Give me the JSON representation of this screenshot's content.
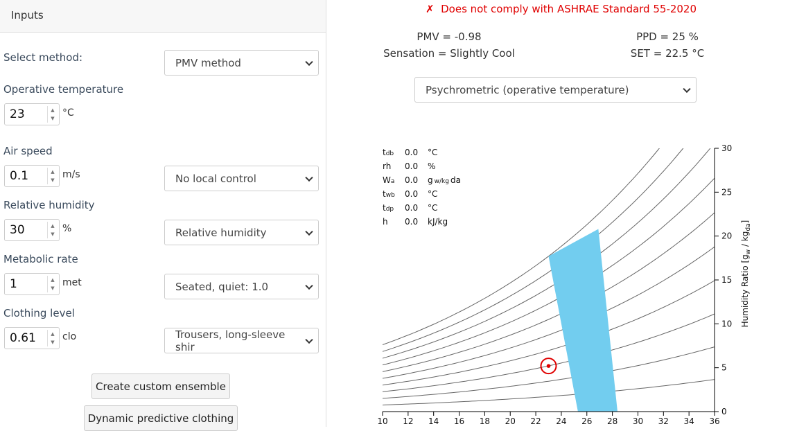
{
  "inputs_panel": {
    "title": "Inputs",
    "method": {
      "label": "Select method:",
      "value": "PMV method"
    },
    "fields": [
      {
        "label": "Operative temperature",
        "value": "23",
        "unit": "°C"
      },
      {
        "label": "Air speed",
        "value": "0.1",
        "unit": "m/s",
        "select": "No local control"
      },
      {
        "label": "Relative humidity",
        "value": "30",
        "unit": "%",
        "select": "Relative humidity"
      },
      {
        "label": "Metabolic rate",
        "value": "1",
        "unit": "met",
        "select": "Seated, quiet: 1.0"
      },
      {
        "label": "Clothing level",
        "value": "0.61",
        "unit": "clo",
        "select": "Trousers, long-sleeve shir"
      }
    ],
    "buttons": [
      "Create custom ensemble",
      "Dynamic predictive clothing"
    ]
  },
  "status": {
    "icon": "✗",
    "text": "Does not comply with ASHRAE Standard 55-2020"
  },
  "results": {
    "pmv": "PMV = -0.98",
    "sensation": "Sensation = Slightly Cool",
    "ppd": "PPD = 25 %",
    "set": "SET = 22.5 °C"
  },
  "chart_select": "Psychrometric (operative temperature)",
  "chart_data": {
    "type": "psychrometric",
    "y_label": [
      "Humidity Ratio [g",
      "w",
      " / kg",
      "da",
      "]"
    ],
    "xlim": [
      10,
      36
    ],
    "ylim": [
      0,
      30
    ],
    "xticks": [
      10,
      12,
      14,
      16,
      18,
      20,
      22,
      24,
      26,
      28,
      30,
      32,
      34,
      36
    ],
    "yticks": [
      0,
      5,
      10,
      15,
      20,
      25,
      30
    ],
    "rh_curves": [
      10,
      20,
      30,
      40,
      50,
      60,
      70,
      80,
      90,
      100
    ],
    "comfort_zone": {
      "color": "#72cdef",
      "x": [
        25.3,
        28.4,
        26.9,
        23.0
      ],
      "y": [
        0,
        0,
        20.8,
        17.7
      ]
    },
    "point": {
      "x": 23.0,
      "y": 5.2,
      "color": "#e00000"
    },
    "hover": [
      {
        "label": "t",
        "sub": "db",
        "value": "0.0",
        "unit": [
          "°C"
        ]
      },
      {
        "label": "rh",
        "sub": "",
        "value": "0.0",
        "unit": [
          "%"
        ]
      },
      {
        "label": "W",
        "sub": "a",
        "value": "0.0",
        "unit": [
          "g",
          "w/kg",
          "da"
        ]
      },
      {
        "label": "t",
        "sub": "wb",
        "value": "0.0",
        "unit": [
          "°C"
        ]
      },
      {
        "label": "t",
        "sub": "dp",
        "value": "0.0",
        "unit": [
          "°C"
        ]
      },
      {
        "label": "h",
        "sub": "",
        "value": "0.0",
        "unit": [
          "kJ/kg"
        ]
      }
    ]
  }
}
